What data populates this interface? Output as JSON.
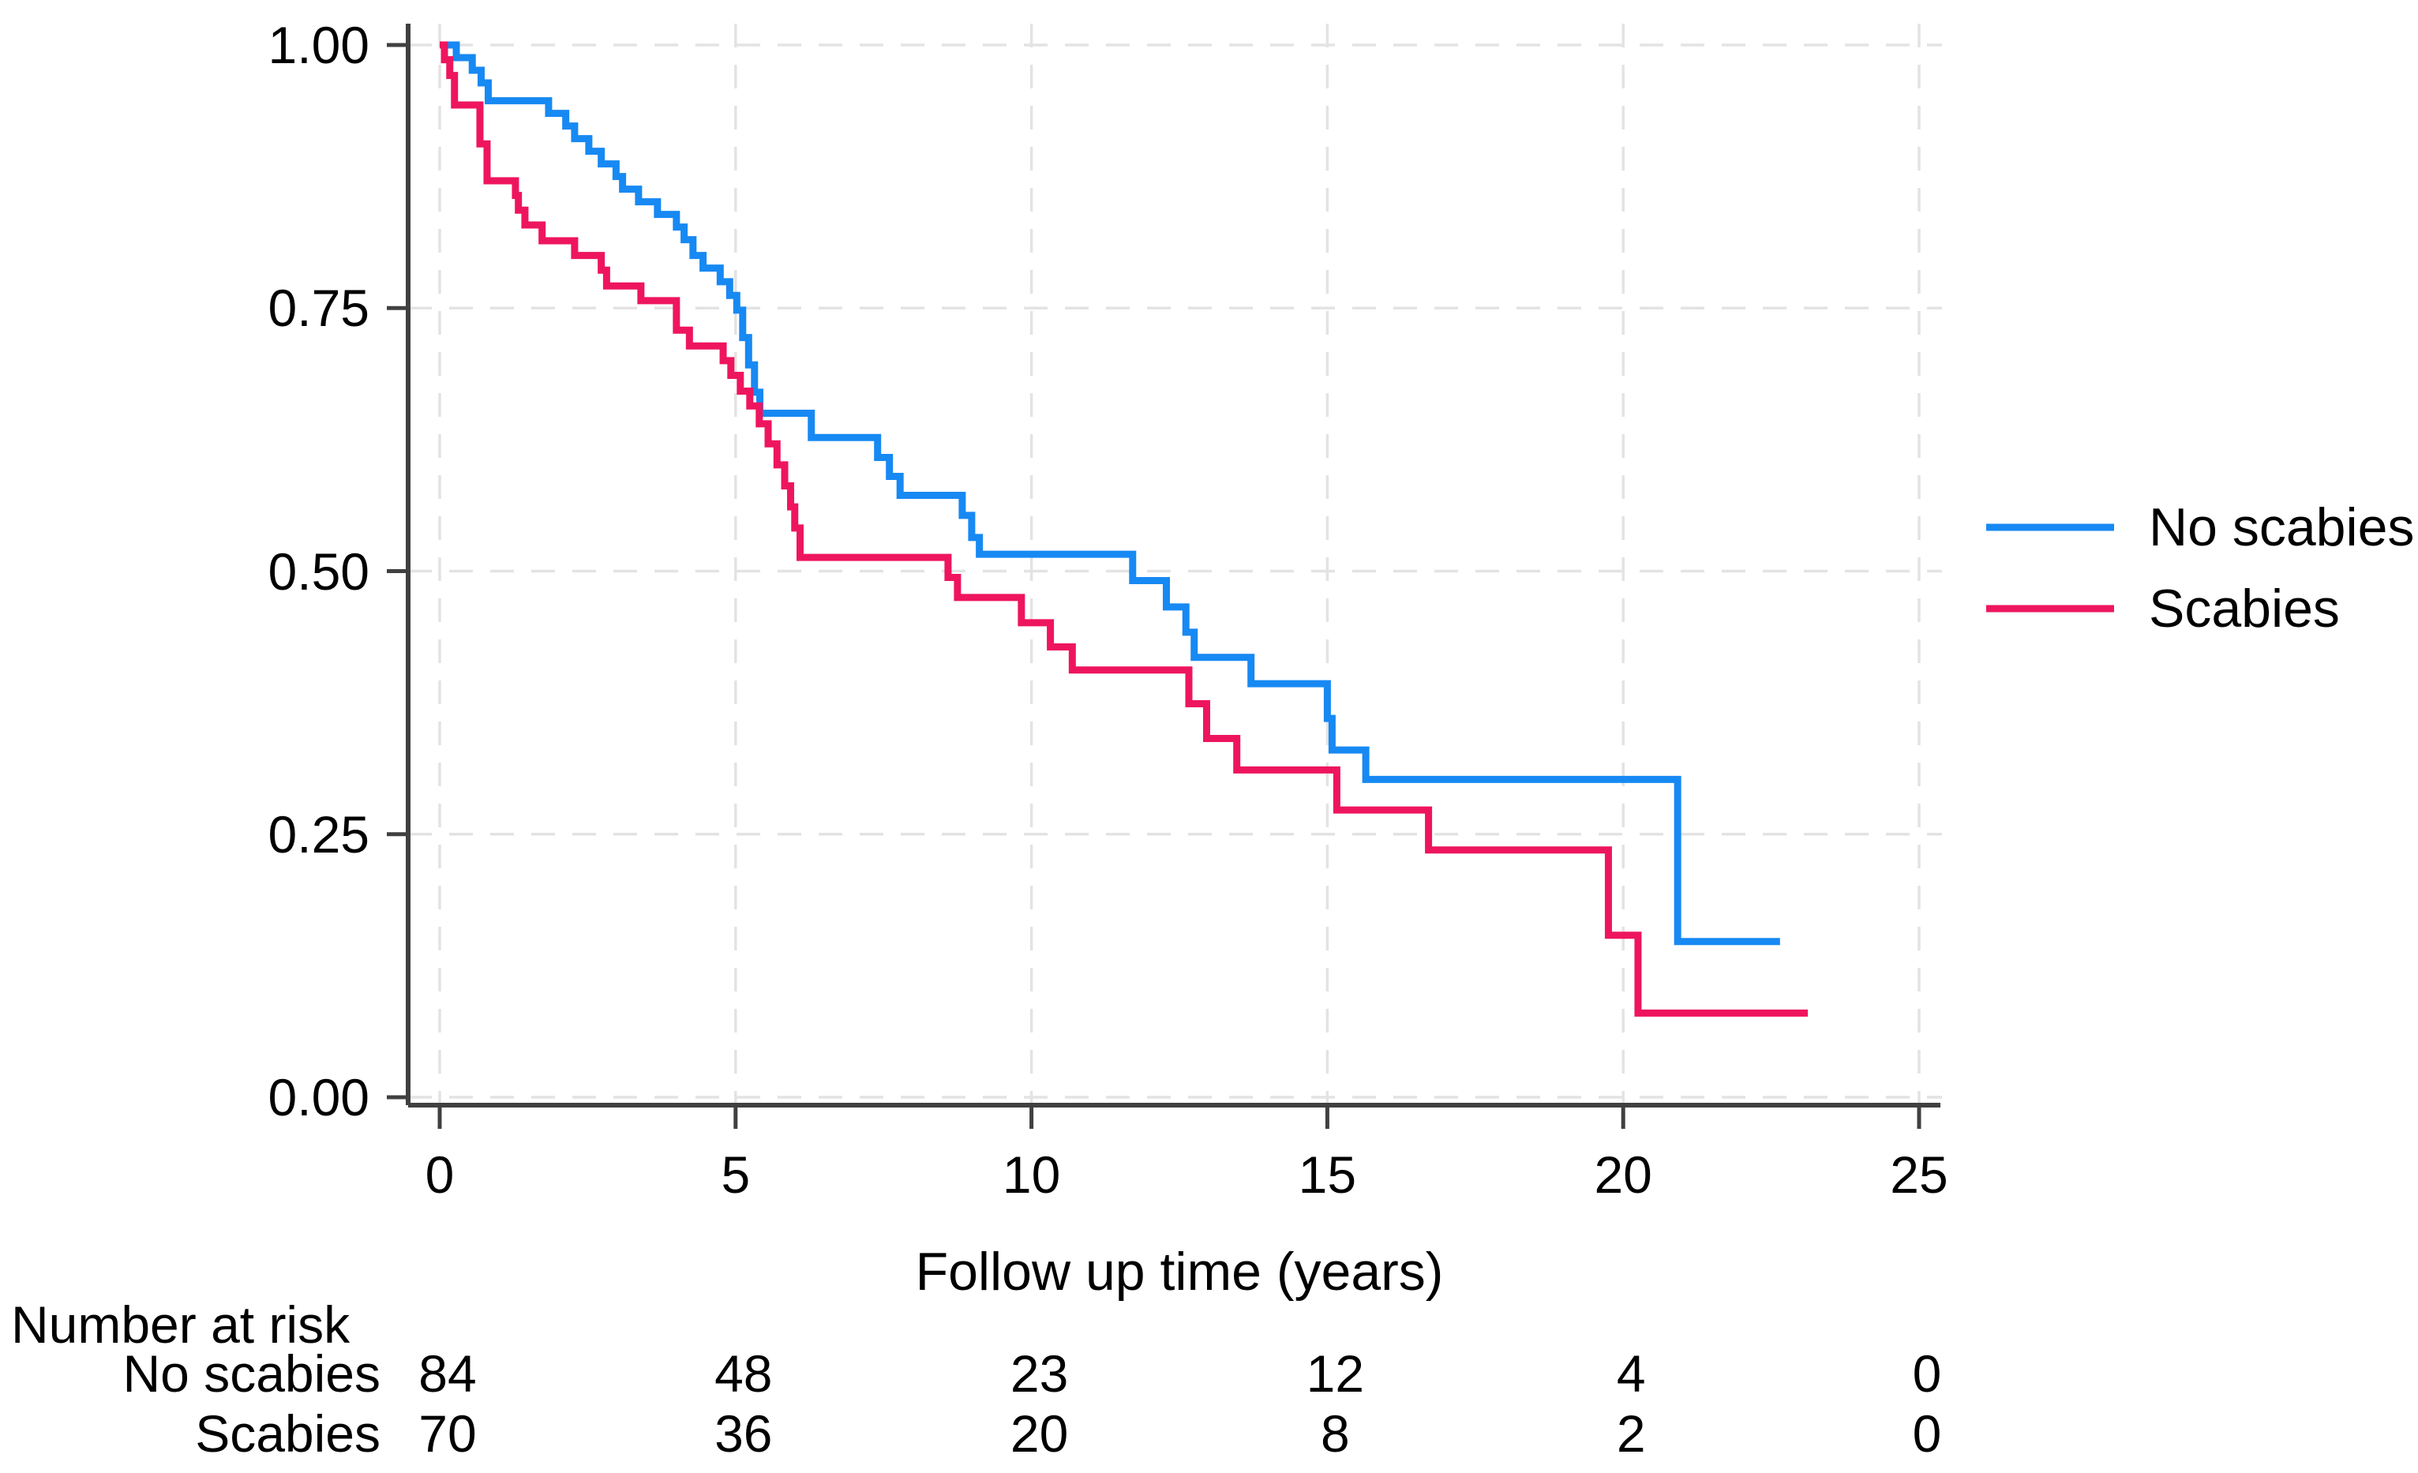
{
  "colors": {
    "no_scabies_line": "#1789F3",
    "scabies_line": "#EE155F",
    "gridline": "#E3E3E3",
    "axis": "#404040",
    "text": "#000000",
    "background": "#FFFFFF"
  },
  "chart_data": {
    "type": "line",
    "subtype": "kaplan-meier-step",
    "title": "",
    "xlabel": "Follow up time (years)",
    "ylabel": "",
    "xlim": [
      0,
      25
    ],
    "ylim": [
      0,
      1
    ],
    "grid": "dashed-both-axes",
    "legend_position": "right-outside",
    "x_ticks": [
      {
        "label": "0",
        "value": 0
      },
      {
        "label": "5",
        "value": 5
      },
      {
        "label": "10",
        "value": 10
      },
      {
        "label": "15",
        "value": 15
      },
      {
        "label": "20",
        "value": 20
      },
      {
        "label": "25",
        "value": 25
      }
    ],
    "y_ticks": [
      {
        "label": "1.00",
        "value": 1.0
      },
      {
        "label": "0.75",
        "value": 0.75
      },
      {
        "label": "0.50",
        "value": 0.5
      },
      {
        "label": "0.25",
        "value": 0.25
      },
      {
        "label": "0.00",
        "value": 0.0
      }
    ],
    "series": [
      {
        "name": "No scabies",
        "color": "#1789F3",
        "end_time": 22.65,
        "steps": [
          [
            0,
            1.0
          ],
          [
            0.28,
            0.988
          ],
          [
            0.55,
            0.976
          ],
          [
            0.7,
            0.964
          ],
          [
            0.82,
            0.947
          ],
          [
            1.84,
            0.935
          ],
          [
            2.13,
            0.923
          ],
          [
            2.28,
            0.911
          ],
          [
            2.52,
            0.899
          ],
          [
            2.73,
            0.887
          ],
          [
            2.98,
            0.875
          ],
          [
            3.09,
            0.863
          ],
          [
            3.36,
            0.851
          ],
          [
            3.68,
            0.839
          ],
          [
            4.0,
            0.827
          ],
          [
            4.13,
            0.815
          ],
          [
            4.28,
            0.8
          ],
          [
            4.45,
            0.788
          ],
          [
            4.74,
            0.775
          ],
          [
            4.9,
            0.762
          ],
          [
            5.02,
            0.748
          ],
          [
            5.12,
            0.722
          ],
          [
            5.22,
            0.696
          ],
          [
            5.32,
            0.67
          ],
          [
            5.41,
            0.65
          ],
          [
            6.28,
            0.627
          ],
          [
            7.4,
            0.608
          ],
          [
            7.6,
            0.59
          ],
          [
            7.78,
            0.572
          ],
          [
            8.83,
            0.553
          ],
          [
            8.99,
            0.532
          ],
          [
            9.12,
            0.516
          ],
          [
            11.71,
            0.491
          ],
          [
            12.28,
            0.466
          ],
          [
            12.61,
            0.442
          ],
          [
            12.75,
            0.418
          ],
          [
            13.71,
            0.393
          ],
          [
            15.0,
            0.36
          ],
          [
            15.08,
            0.33
          ],
          [
            15.65,
            0.302
          ],
          [
            20.92,
            0.148
          ]
        ]
      },
      {
        "name": "Scabies",
        "color": "#EE155F",
        "end_time": 23.12,
        "steps": [
          [
            0,
            1.0
          ],
          [
            0.08,
            0.986
          ],
          [
            0.17,
            0.971
          ],
          [
            0.25,
            0.943
          ],
          [
            0.68,
            0.906
          ],
          [
            0.8,
            0.871
          ],
          [
            1.28,
            0.857
          ],
          [
            1.33,
            0.843
          ],
          [
            1.44,
            0.829
          ],
          [
            1.73,
            0.814
          ],
          [
            2.28,
            0.8
          ],
          [
            2.73,
            0.786
          ],
          [
            2.82,
            0.771
          ],
          [
            3.4,
            0.757
          ],
          [
            4.0,
            0.729
          ],
          [
            4.22,
            0.714
          ],
          [
            4.79,
            0.7
          ],
          [
            4.92,
            0.686
          ],
          [
            5.08,
            0.671
          ],
          [
            5.24,
            0.657
          ],
          [
            5.4,
            0.64
          ],
          [
            5.55,
            0.621
          ],
          [
            5.7,
            0.601
          ],
          [
            5.83,
            0.581
          ],
          [
            5.93,
            0.561
          ],
          [
            6.0,
            0.541
          ],
          [
            6.09,
            0.513
          ],
          [
            8.59,
            0.494
          ],
          [
            8.75,
            0.475
          ],
          [
            9.83,
            0.451
          ],
          [
            10.32,
            0.428
          ],
          [
            10.69,
            0.406
          ],
          [
            12.66,
            0.374
          ],
          [
            12.96,
            0.341
          ],
          [
            13.47,
            0.311
          ],
          [
            15.16,
            0.273
          ],
          [
            16.71,
            0.235
          ],
          [
            19.75,
            0.154
          ],
          [
            20.25,
            0.08
          ]
        ]
      }
    ],
    "risk_table": {
      "title": "Number at risk",
      "times": [
        0,
        5,
        10,
        15,
        20,
        25
      ],
      "rows": [
        {
          "label": "No scabies",
          "counts": [
            84,
            48,
            23,
            12,
            4,
            0
          ]
        },
        {
          "label": "Scabies",
          "counts": [
            70,
            36,
            20,
            8,
            2,
            0
          ]
        }
      ]
    }
  }
}
